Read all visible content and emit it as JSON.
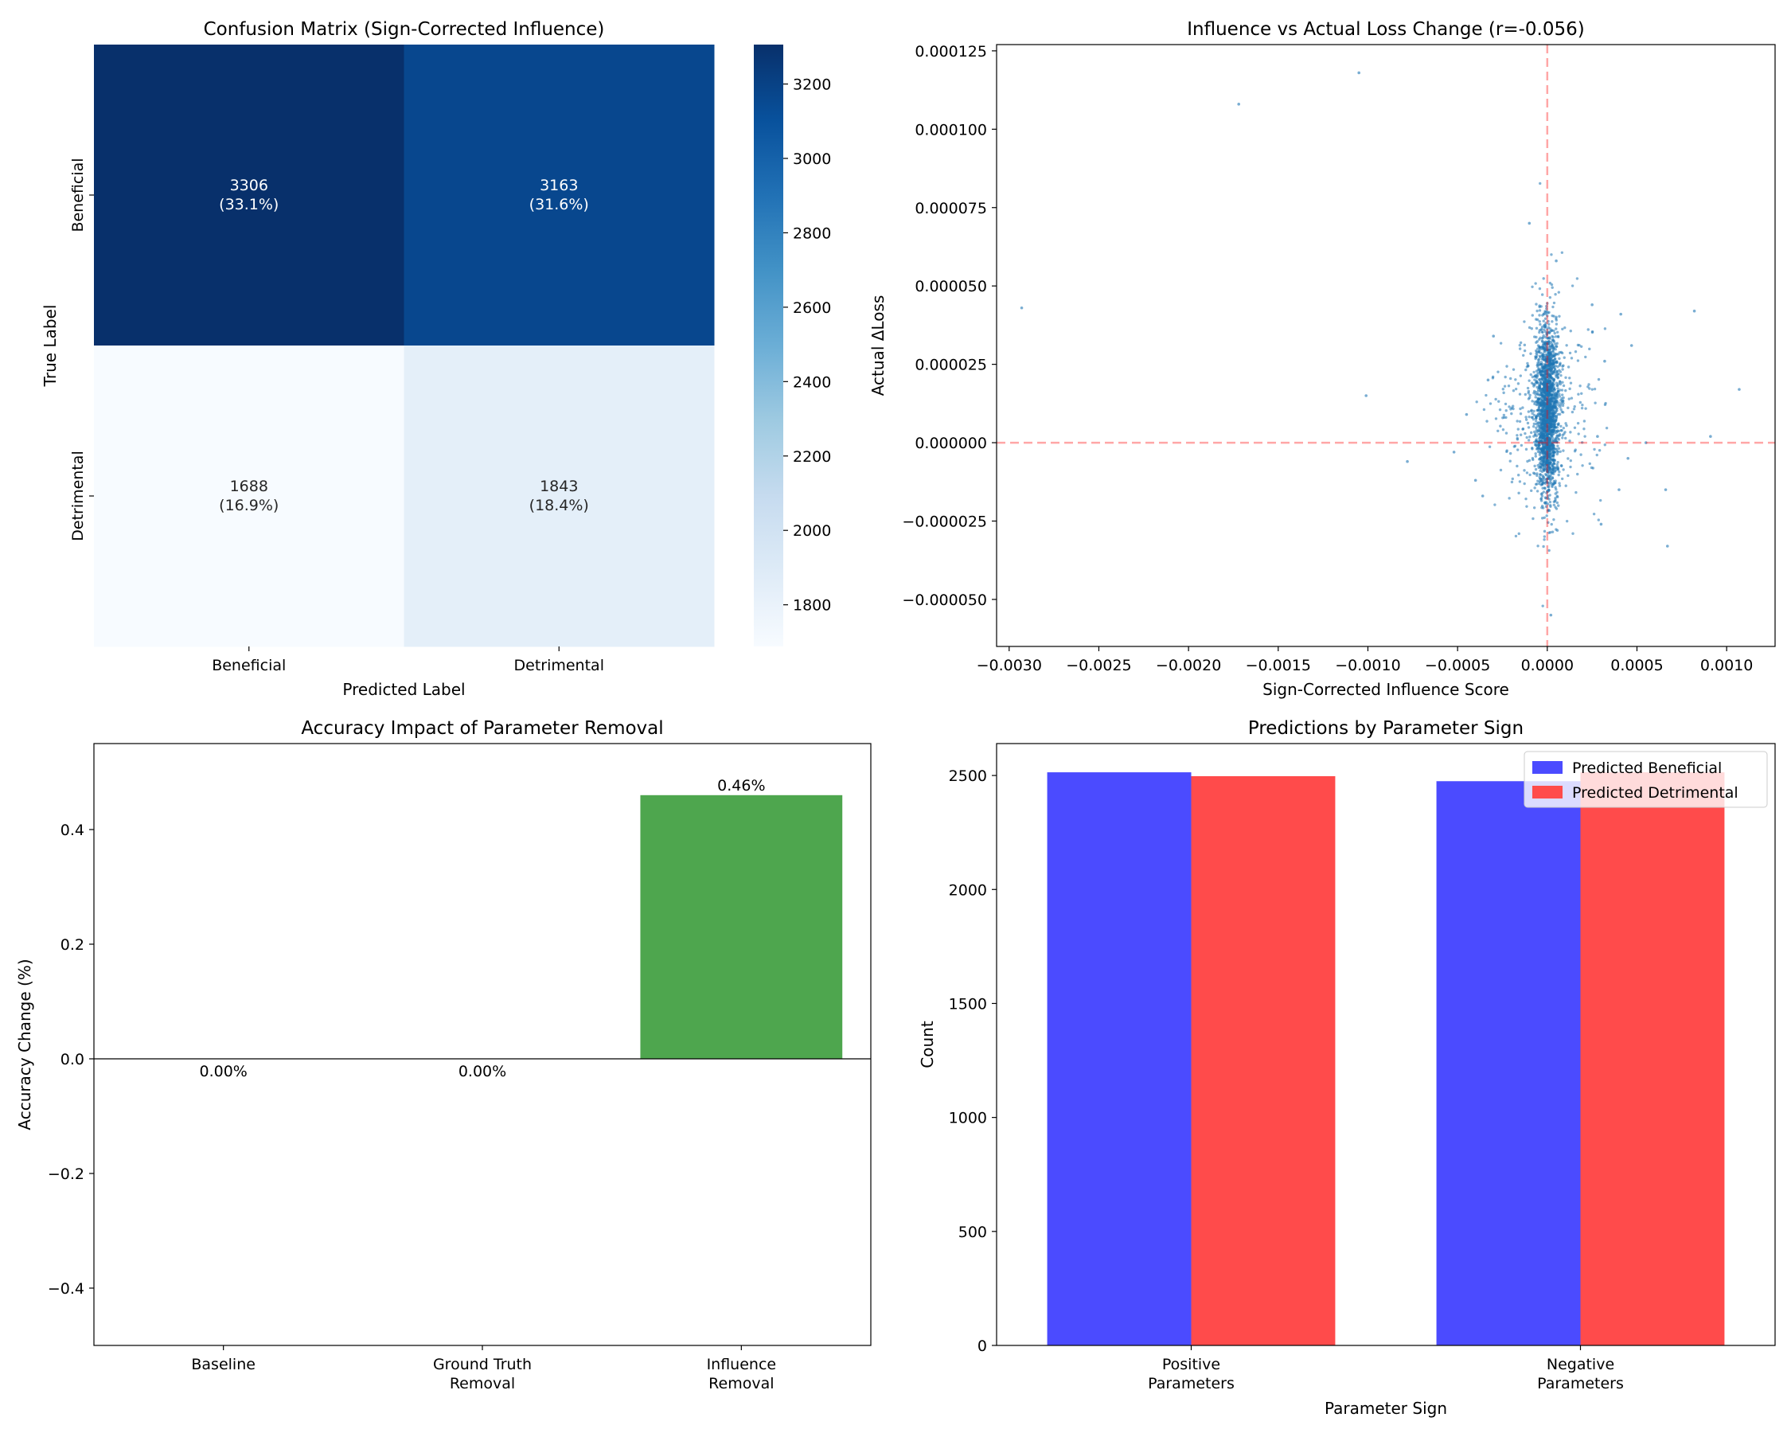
{
  "chart_data": [
    {
      "type": "heatmap",
      "title": "Confusion Matrix (Sign-Corrected Influence)",
      "xlabel": "Predicted Label",
      "ylabel": "True Label",
      "x_categories": [
        "Beneficial",
        "Detrimental"
      ],
      "y_categories": [
        "Beneficial",
        "Detrimental"
      ],
      "values": [
        [
          3306,
          3163
        ],
        [
          1688,
          1843
        ]
      ],
      "percent_labels": [
        [
          "(33.1%)",
          "(31.6%)"
        ],
        [
          "(16.9%)",
          "(18.4%)"
        ]
      ],
      "colormap": "Blues",
      "colorbar": {
        "min": 1688,
        "max": 3306,
        "ticks": [
          1800,
          2000,
          2200,
          2400,
          2600,
          2800,
          3000,
          3200
        ]
      }
    },
    {
      "type": "scatter",
      "title": "Influence vs Actual Loss Change (r=-0.056)",
      "xlabel": "Sign-Corrected Influence Score",
      "ylabel": "Actual ΔLoss",
      "xlim": [
        -0.00307,
        0.00127
      ],
      "ylim": [
        -6.5e-05,
        0.000127
      ],
      "xticks": [
        -0.003,
        -0.0025,
        -0.002,
        -0.0015,
        -0.001,
        -0.0005,
        0.0,
        0.0005,
        0.001
      ],
      "xtick_labels": [
        "−0.0030",
        "−0.0025",
        "−0.0020",
        "−0.0015",
        "−0.0010",
        "−0.0005",
        "0.0000",
        "0.0005",
        "0.0010"
      ],
      "yticks": [
        -5e-05,
        -2.5e-05,
        0.0,
        2.5e-05,
        5e-05,
        7.5e-05,
        0.0001,
        0.000125
      ],
      "ytick_labels": [
        "−0.000050",
        "−0.000025",
        "0.000000",
        "0.000025",
        "0.000050",
        "0.000075",
        "0.000100",
        "0.000125"
      ],
      "point_color": "#1f77b4",
      "reference_lines": {
        "x": 0,
        "y": 0,
        "color": "#ff0000",
        "style": "dashed"
      },
      "points": [
        [
          -0.00293,
          4.3e-05
        ],
        [
          -0.00172,
          0.000108
        ],
        [
          -0.00105,
          0.000118
        ],
        [
          -0.00101,
          1.5e-05
        ],
        [
          -0.00078,
          -6e-06
        ],
        [
          -0.00052,
          -3e-06
        ],
        [
          -0.00045,
          9e-06
        ],
        [
          -0.0004,
          -1.2e-05
        ],
        [
          -0.00036,
          -1.7e-05
        ],
        [
          -0.00033,
          2e-05
        ],
        [
          -0.0003,
          3.4e-05
        ],
        [
          0.00066,
          -1.5e-05
        ],
        [
          0.00067,
          -3.3e-05
        ],
        [
          0.00082,
          4.2e-05
        ],
        [
          0.00091,
          2e-06
        ],
        [
          0.00107,
          1.7e-05
        ],
        [
          0.00047,
          3.1e-05
        ],
        [
          0.00041,
          4.1e-05
        ],
        [
          0.0004,
          -1.5e-05
        ],
        [
          0.00045,
          -5e-06
        ],
        [
          0.00055,
          0.0
        ],
        [
          0.00028,
          2e-06
        ],
        [
          0.00032,
          2.6e-05
        ],
        [
          0.0003,
          -2.6e-05
        ],
        [
          0.00025,
          4.4e-05
        ],
        [
          -0.0001,
          7e-05
        ],
        [
          5e-05,
          5.8e-05
        ],
        [
          2e-05,
          -5.5e-05
        ]
      ],
      "cloud": {
        "n": 2200,
        "x_center": 0.0,
        "x_spread": 9e-05,
        "y_center": 1e-05,
        "y_spread": 1.4e-05
      }
    },
    {
      "type": "bar",
      "title": "Accuracy Impact of Parameter Removal",
      "xlabel": "",
      "ylabel": "Accuracy Change (%)",
      "categories": [
        [
          "Baseline"
        ],
        [
          "Ground Truth",
          "Removal"
        ],
        [
          "Influence",
          "Removal"
        ]
      ],
      "values": [
        0.0,
        0.0,
        0.46
      ],
      "value_labels": [
        "0.00%",
        "0.00%",
        "0.46%"
      ],
      "ylim": [
        -0.5,
        0.55
      ],
      "yticks": [
        -0.4,
        -0.2,
        0.0,
        0.2,
        0.4
      ],
      "ytick_labels": [
        "−0.4",
        "−0.2",
        "0.0",
        "0.2",
        "0.4"
      ],
      "bar_color": "#4ea64e"
    },
    {
      "type": "bar",
      "title": "Predictions by Parameter Sign",
      "xlabel": "Parameter Sign",
      "ylabel": "Count",
      "categories": [
        [
          "Positive",
          "Parameters"
        ],
        [
          "Negative",
          "Parameters"
        ]
      ],
      "series": [
        {
          "name": "Predicted Beneficial",
          "values": [
            2514,
            2475
          ],
          "color": "#4b4bff"
        },
        {
          "name": "Predicted Detrimental",
          "values": [
            2497,
            2514
          ],
          "color": "#ff4b4b"
        }
      ],
      "ylim": [
        0,
        2640
      ],
      "yticks": [
        0,
        500,
        1000,
        1500,
        2000,
        2500
      ],
      "legend": "top-right"
    }
  ]
}
